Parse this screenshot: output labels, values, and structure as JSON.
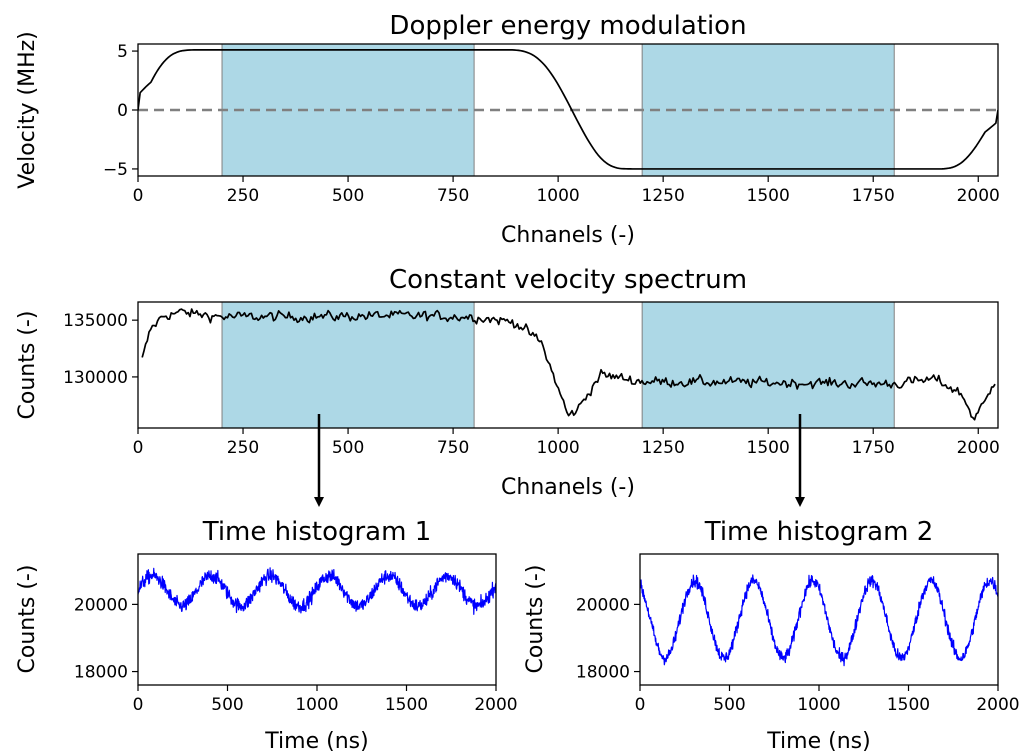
{
  "chart_data": [
    {
      "id": "doppler",
      "type": "line",
      "title": "Doppler energy modulation",
      "xlabel": "Chnanels (-)",
      "ylabel": "Velocity (MHz)",
      "xlim": [
        0,
        2047
      ],
      "ylim": [
        -5.6,
        5.6
      ],
      "xticks": [
        0,
        250,
        500,
        750,
        1000,
        1250,
        1500,
        1750,
        2000
      ],
      "yticks": [
        5,
        0,
        -5
      ],
      "ytick_labels": [
        "5",
        "0",
        "−5"
      ],
      "shaded_regions": [
        [
          200,
          800
        ],
        [
          1200,
          1800
        ]
      ],
      "reference_line": {
        "y": 0,
        "style": "dashed",
        "color": "#808080"
      },
      "series": [
        {
          "color": "#000000",
          "x": [
            0,
            25,
            50,
            75,
            100,
            125,
            920,
            945,
            970,
            995,
            1020,
            1045,
            1070,
            1095,
            1120,
            1145,
            1940,
            1965,
            1990,
            2015,
            2047
          ],
          "y": [
            0,
            2.1,
            3.8,
            4.8,
            5.1,
            5.1,
            5.1,
            4.7,
            3.9,
            2.6,
            0.9,
            -0.9,
            -2.6,
            -4.0,
            -4.9,
            -5.0,
            -5.0,
            -4.6,
            -3.4,
            -2.0,
            0
          ]
        }
      ]
    },
    {
      "id": "spectrum",
      "type": "line",
      "title": "Constant velocity spectrum",
      "xlabel": "Chnanels (-)",
      "ylabel": "Counts (-)",
      "xlim": [
        0,
        2047
      ],
      "ylim": [
        125500,
        136600
      ],
      "xticks": [
        0,
        250,
        500,
        750,
        1000,
        1250,
        1500,
        1750,
        2000
      ],
      "yticks": [
        135000,
        130000
      ],
      "ytick_labels": [
        "135000",
        "130000"
      ],
      "shaded_regions": [
        [
          200,
          800
        ],
        [
          1200,
          1800
        ]
      ],
      "series": [
        {
          "color": "#000000",
          "x": [
            10,
            30,
            60,
            100,
            200,
            400,
            600,
            800,
            900,
            960,
            1000,
            1025,
            1050,
            1070,
            1100,
            1200,
            1500,
            1800,
            1900,
            1960,
            1990,
            2020,
            2040
          ],
          "y": [
            131500,
            134200,
            135400,
            135700,
            135300,
            135300,
            135400,
            135300,
            134800,
            133000,
            129000,
            126500,
            127300,
            128500,
            130200,
            129600,
            129500,
            129400,
            129800,
            128500,
            126300,
            128000,
            129800
          ],
          "noise": 380
        }
      ]
    },
    {
      "id": "hist1",
      "type": "line",
      "title": "Time histogram 1",
      "xlabel": "Time (ns)",
      "ylabel": "Counts (-)",
      "xlim": [
        0,
        2000
      ],
      "ylim": [
        17600,
        21500
      ],
      "xticks": [
        0,
        500,
        1000,
        1500,
        2000
      ],
      "yticks": [
        20000,
        18000
      ],
      "ytick_labels": [
        "20000",
        "18000"
      ],
      "series": [
        {
          "color": "#0000ff",
          "x_range": [
            0,
            2000
          ],
          "baseline": 20400,
          "amplitude": 450,
          "period_ns": 330,
          "peak_at_ns": 410,
          "noise": 150
        }
      ]
    },
    {
      "id": "hist2",
      "type": "line",
      "title": "Time histogram 2",
      "xlabel": "Time (ns)",
      "ylabel": "Counts (-)",
      "xlim": [
        0,
        2000
      ],
      "ylim": [
        17600,
        21500
      ],
      "xticks": [
        0,
        500,
        1000,
        1500,
        2000
      ],
      "yticks": [
        20000,
        18000
      ],
      "ytick_labels": [
        "20000",
        "18000"
      ],
      "series": [
        {
          "color": "#0000ff",
          "x_range": [
            0,
            2000
          ],
          "baseline": 19550,
          "amplitude": 1150,
          "period_ns": 330,
          "peak_at_ns": 305,
          "noise": 130
        }
      ]
    }
  ],
  "colors": {
    "shade": "#add8e6",
    "shade_edge": "#808080",
    "arrow": "#000000"
  }
}
